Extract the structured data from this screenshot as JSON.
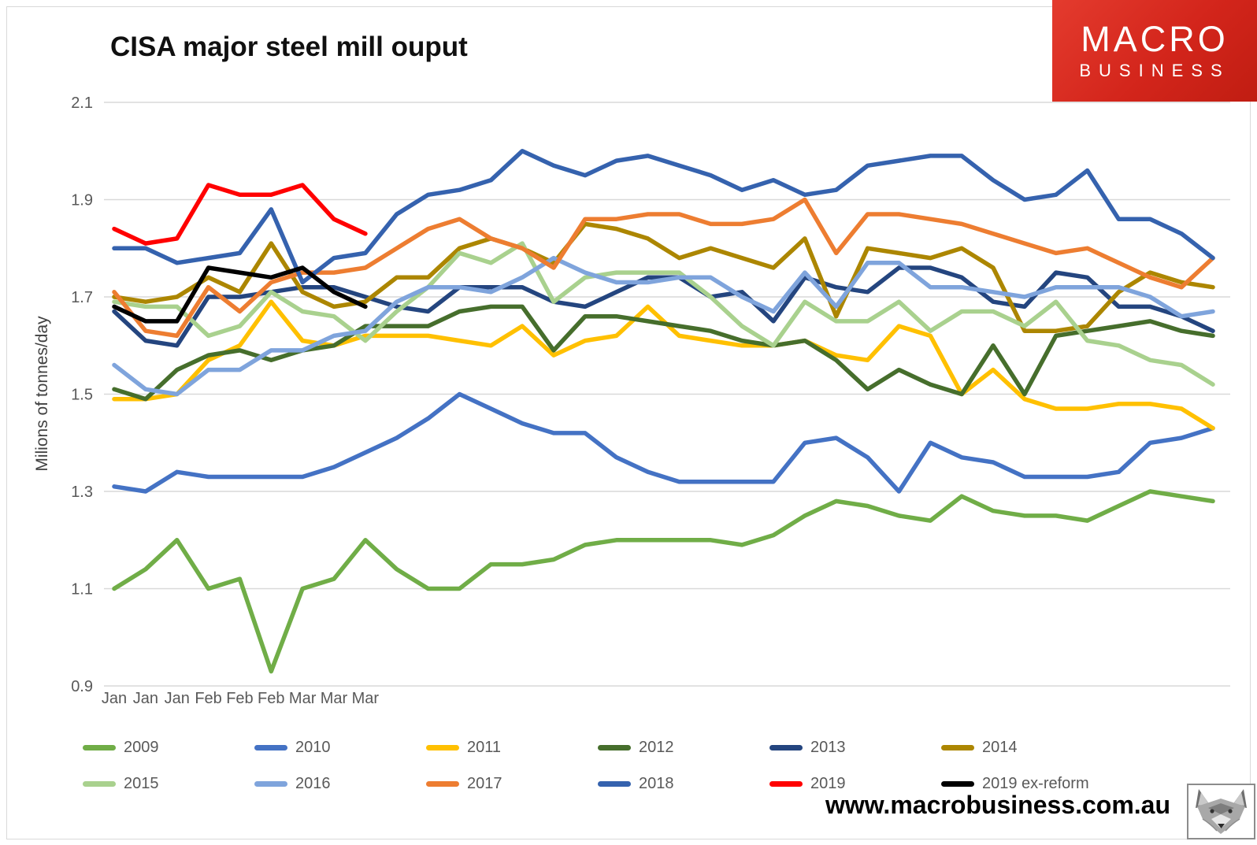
{
  "title": "CISA major steel mill ouput",
  "logo": {
    "line1": "MACRO",
    "line2": "BUSINESS",
    "bg_color": "#d3251b"
  },
  "footer": {
    "url": "www.macrobusiness.com.au"
  },
  "chart_data": {
    "type": "line",
    "title": "CISA major steel mill ouput",
    "xlabel": "",
    "ylabel": "Milions of tonnes/day",
    "ylim": [
      0.9,
      2.1
    ],
    "ytick_step": 0.2,
    "grid": true,
    "legend_position": "bottom",
    "categories": [
      "Jan",
      "Jan",
      "Jan",
      "Feb",
      "Feb",
      "Feb",
      "Mar",
      "Mar",
      "Mar",
      "",
      "",
      "",
      "",
      "",
      "",
      "",
      "",
      "",
      "",
      "",
      "",
      "",
      "",
      "",
      "",
      "",
      "",
      "",
      "",
      "",
      "",
      "",
      "",
      "",
      "",
      ""
    ],
    "series": [
      {
        "name": "2009",
        "color": "#70AD47",
        "values": [
          1.1,
          1.14,
          1.2,
          1.1,
          1.12,
          0.93,
          1.1,
          1.12,
          1.2,
          1.14,
          1.1,
          1.1,
          1.15,
          1.15,
          1.16,
          1.19,
          1.2,
          1.2,
          1.2,
          1.2,
          1.19,
          1.21,
          1.25,
          1.28,
          1.27,
          1.25,
          1.24,
          1.29,
          1.26,
          1.25,
          1.25,
          1.24,
          1.27,
          1.3,
          1.29,
          1.28
        ]
      },
      {
        "name": "2010",
        "color": "#4472C4",
        "values": [
          1.31,
          1.3,
          1.34,
          1.33,
          1.33,
          1.33,
          1.33,
          1.35,
          1.38,
          1.41,
          1.45,
          1.5,
          1.47,
          1.44,
          1.42,
          1.42,
          1.37,
          1.34,
          1.32,
          1.32,
          1.32,
          1.32,
          1.4,
          1.41,
          1.37,
          1.3,
          1.4,
          1.37,
          1.36,
          1.33,
          1.33,
          1.33,
          1.34,
          1.4,
          1.41,
          1.43
        ]
      },
      {
        "name": "2011",
        "color": "#FFC000",
        "values": [
          1.49,
          1.49,
          1.5,
          1.57,
          1.6,
          1.69,
          1.61,
          1.6,
          1.62,
          1.62,
          1.62,
          1.61,
          1.6,
          1.64,
          1.58,
          1.61,
          1.62,
          1.68,
          1.62,
          1.61,
          1.6,
          1.6,
          1.61,
          1.58,
          1.57,
          1.64,
          1.62,
          1.5,
          1.55,
          1.49,
          1.47,
          1.47,
          1.48,
          1.48,
          1.47,
          1.43
        ]
      },
      {
        "name": "2012",
        "color": "#466E2C",
        "values": [
          1.51,
          1.49,
          1.55,
          1.58,
          1.59,
          1.57,
          1.59,
          1.6,
          1.64,
          1.64,
          1.64,
          1.67,
          1.68,
          1.68,
          1.59,
          1.66,
          1.66,
          1.65,
          1.64,
          1.63,
          1.61,
          1.6,
          1.61,
          1.57,
          1.51,
          1.55,
          1.52,
          1.5,
          1.6,
          1.5,
          1.62,
          1.63,
          1.64,
          1.65,
          1.63,
          1.62
        ]
      },
      {
        "name": "2013",
        "color": "#24457F",
        "values": [
          1.67,
          1.61,
          1.6,
          1.7,
          1.7,
          1.71,
          1.72,
          1.72,
          1.7,
          1.68,
          1.67,
          1.72,
          1.72,
          1.72,
          1.69,
          1.68,
          1.71,
          1.74,
          1.74,
          1.7,
          1.71,
          1.65,
          1.74,
          1.72,
          1.71,
          1.76,
          1.76,
          1.74,
          1.69,
          1.68,
          1.75,
          1.74,
          1.68,
          1.68,
          1.66,
          1.63
        ]
      },
      {
        "name": "2014",
        "color": "#AC8600",
        "values": [
          1.7,
          1.69,
          1.7,
          1.74,
          1.71,
          1.81,
          1.71,
          1.68,
          1.69,
          1.74,
          1.74,
          1.8,
          1.82,
          1.8,
          1.77,
          1.85,
          1.84,
          1.82,
          1.78,
          1.8,
          1.78,
          1.76,
          1.82,
          1.66,
          1.8,
          1.79,
          1.78,
          1.8,
          1.76,
          1.63,
          1.63,
          1.64,
          1.71,
          1.75,
          1.73,
          1.72
        ]
      },
      {
        "name": "2015",
        "color": "#A9D18E",
        "values": [
          1.69,
          1.68,
          1.68,
          1.62,
          1.64,
          1.71,
          1.67,
          1.66,
          1.61,
          1.67,
          1.72,
          1.79,
          1.77,
          1.81,
          1.69,
          1.74,
          1.75,
          1.75,
          1.75,
          1.7,
          1.64,
          1.6,
          1.69,
          1.65,
          1.65,
          1.69,
          1.63,
          1.67,
          1.67,
          1.64,
          1.69,
          1.61,
          1.6,
          1.57,
          1.56,
          1.52
        ]
      },
      {
        "name": "2016",
        "color": "#7FA4DC",
        "values": [
          1.56,
          1.51,
          1.5,
          1.55,
          1.55,
          1.59,
          1.59,
          1.62,
          1.63,
          1.69,
          1.72,
          1.72,
          1.71,
          1.74,
          1.78,
          1.75,
          1.73,
          1.73,
          1.74,
          1.74,
          1.7,
          1.67,
          1.75,
          1.68,
          1.77,
          1.77,
          1.72,
          1.72,
          1.71,
          1.7,
          1.72,
          1.72,
          1.72,
          1.7,
          1.66,
          1.67
        ]
      },
      {
        "name": "2017",
        "color": "#ED7D31",
        "values": [
          1.71,
          1.63,
          1.62,
          1.72,
          1.67,
          1.73,
          1.75,
          1.75,
          1.76,
          1.8,
          1.84,
          1.86,
          1.82,
          1.8,
          1.76,
          1.86,
          1.86,
          1.87,
          1.87,
          1.85,
          1.85,
          1.86,
          1.9,
          1.79,
          1.87,
          1.87,
          1.86,
          1.85,
          1.83,
          1.81,
          1.79,
          1.8,
          1.77,
          1.74,
          1.72,
          1.78
        ]
      },
      {
        "name": "2018",
        "color": "#3562AE",
        "values": [
          1.8,
          1.8,
          1.77,
          1.78,
          1.79,
          1.88,
          1.73,
          1.78,
          1.79,
          1.87,
          1.91,
          1.92,
          1.94,
          2.0,
          1.97,
          1.95,
          1.98,
          1.99,
          1.97,
          1.95,
          1.92,
          1.94,
          1.91,
          1.92,
          1.97,
          1.98,
          1.99,
          1.99,
          1.94,
          1.9,
          1.91,
          1.96,
          1.86,
          1.86,
          1.83,
          1.78
        ]
      },
      {
        "name": "2019",
        "color": "#FF0000",
        "values": [
          1.84,
          1.81,
          1.82,
          1.93,
          1.91,
          1.91,
          1.93,
          1.86,
          1.83,
          null,
          null,
          null,
          null,
          null,
          null,
          null,
          null,
          null,
          null,
          null,
          null,
          null,
          null,
          null,
          null,
          null,
          null,
          null,
          null,
          null,
          null,
          null,
          null,
          null,
          null,
          null
        ]
      },
      {
        "name": "2019 ex-reform",
        "color": "#000000",
        "values": [
          1.68,
          1.65,
          1.65,
          1.76,
          1.75,
          1.74,
          1.76,
          1.71,
          1.68,
          null,
          null,
          null,
          null,
          null,
          null,
          null,
          null,
          null,
          null,
          null,
          null,
          null,
          null,
          null,
          null,
          null,
          null,
          null,
          null,
          null,
          null,
          null,
          null,
          null,
          null,
          null
        ]
      }
    ]
  }
}
